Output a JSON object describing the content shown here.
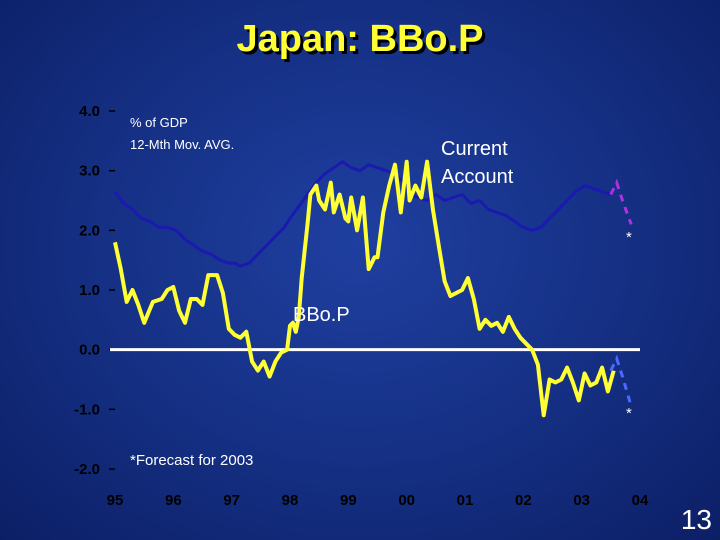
{
  "slide": {
    "title": "Japan:  BBo.P",
    "page_number": "13"
  },
  "chart_data": {
    "type": "line",
    "title": "Japan:  BBo.P",
    "ylim": [
      -2.0,
      4.0
    ],
    "xlim": [
      1995,
      2004
    ],
    "y_ticks": [
      "4.0",
      "3.0",
      "2.0",
      "1.0",
      "0.0",
      "-1.0",
      "-2.0"
    ],
    "y_tick_values": [
      4.0,
      3.0,
      2.0,
      1.0,
      0.0,
      -1.0,
      -2.0
    ],
    "x_ticks": [
      "95",
      "96",
      "97",
      "98",
      "99",
      "00",
      "01",
      "02",
      "03",
      "04"
    ],
    "x_tick_values": [
      1995,
      1996,
      1997,
      1998,
      1999,
      2000,
      2001,
      2002,
      2003,
      2004
    ],
    "annotations": {
      "units_line1": "% of GDP",
      "units_line2": "12-Mth Mov. AVG.",
      "forecast_note": "*Forecast for 2003",
      "asterisk": "*"
    },
    "grid": false,
    "colors": {
      "current_account": "#1a1ab0",
      "bbop": "#ffff33",
      "ca_forecast": "#b030e0",
      "bbop_forecast": "#4a6aff",
      "zero_line": "#ffffff",
      "plot_bg": "#ffffff"
    },
    "series": [
      {
        "name": "Current Account",
        "label_line1": "Current",
        "label_line2": "Account",
        "x": [
          1995.0,
          1995.15,
          1995.3,
          1995.45,
          1995.6,
          1995.75,
          1995.9,
          1996.05,
          1996.2,
          1996.35,
          1996.5,
          1996.65,
          1996.8,
          1996.95,
          1997.05,
          1997.15,
          1997.3,
          1997.45,
          1997.6,
          1997.75,
          1997.9,
          1998.0,
          1998.15,
          1998.3,
          1998.45,
          1998.6,
          1998.75,
          1998.9,
          1999.05,
          1999.2,
          1999.35,
          1999.5,
          1999.65,
          1999.8,
          1999.95,
          2000.05,
          2000.2,
          2000.35,
          2000.5,
          2000.65,
          2000.8,
          2000.95,
          2001.1,
          2001.25,
          2001.4,
          2001.55,
          2001.7,
          2001.85,
          2002.0,
          2002.15,
          2002.3,
          2002.45,
          2002.6,
          2002.75,
          2002.9,
          2003.05,
          2003.2,
          2003.35,
          2003.5
        ],
        "values": [
          2.65,
          2.45,
          2.35,
          2.2,
          2.15,
          2.05,
          2.05,
          2.0,
          1.85,
          1.75,
          1.65,
          1.6,
          1.5,
          1.45,
          1.45,
          1.4,
          1.45,
          1.6,
          1.75,
          1.9,
          2.05,
          2.2,
          2.4,
          2.6,
          2.8,
          2.95,
          3.05,
          3.15,
          3.05,
          3.0,
          3.1,
          3.05,
          3.0,
          2.95,
          2.8,
          2.6,
          2.55,
          2.5,
          2.6,
          2.5,
          2.55,
          2.6,
          2.45,
          2.5,
          2.35,
          2.3,
          2.25,
          2.15,
          2.05,
          2.0,
          2.05,
          2.2,
          2.35,
          2.5,
          2.65,
          2.75,
          2.7,
          2.65,
          2.6
        ]
      },
      {
        "name": "BBo.P",
        "label": "BBo.P",
        "x": [
          1995.0,
          1995.1,
          1995.2,
          1995.3,
          1995.4,
          1995.5,
          1995.65,
          1995.8,
          1995.9,
          1996.0,
          1996.1,
          1996.2,
          1996.3,
          1996.4,
          1996.5,
          1996.6,
          1996.75,
          1996.85,
          1996.95,
          1997.05,
          1997.15,
          1997.25,
          1997.35,
          1997.45,
          1997.55,
          1997.65,
          1997.75,
          1997.85,
          1997.95,
          1998.0,
          1998.05,
          1998.1,
          1998.15,
          1998.2,
          1998.3,
          1998.35,
          1998.45,
          1998.5,
          1998.6,
          1998.7,
          1998.75,
          1998.85,
          1998.95,
          1999.0,
          1999.05,
          1999.15,
          1999.25,
          1999.35,
          1999.45,
          1999.5,
          1999.6,
          1999.7,
          1999.8,
          1999.9,
          2000.0,
          2000.05,
          2000.15,
          2000.25,
          2000.35,
          2000.45,
          2000.55,
          2000.65,
          2000.75,
          2000.85,
          2000.95,
          2001.05,
          2001.15,
          2001.25,
          2001.35,
          2001.45,
          2001.55,
          2001.65,
          2001.75,
          2001.85,
          2001.95,
          2002.05,
          2002.15,
          2002.25,
          2002.35,
          2002.45,
          2002.55,
          2002.65,
          2002.75,
          2002.85,
          2002.95,
          2003.05,
          2003.15,
          2003.25,
          2003.35,
          2003.45,
          2003.55
        ],
        "values": [
          1.8,
          1.35,
          0.8,
          1.0,
          0.75,
          0.45,
          0.8,
          0.85,
          1.0,
          1.05,
          0.65,
          0.45,
          0.85,
          0.85,
          0.75,
          1.25,
          1.25,
          0.95,
          0.35,
          0.25,
          0.2,
          0.3,
          -0.2,
          -0.35,
          -0.2,
          -0.45,
          -0.2,
          -0.05,
          0.0,
          0.4,
          0.45,
          0.3,
          0.55,
          1.2,
          2.1,
          2.6,
          2.75,
          2.5,
          2.35,
          2.8,
          2.3,
          2.6,
          2.2,
          2.15,
          2.55,
          2.0,
          2.55,
          1.35,
          1.55,
          1.55,
          2.3,
          2.75,
          3.1,
          2.3,
          3.15,
          2.5,
          2.75,
          2.55,
          3.15,
          2.35,
          1.75,
          1.15,
          0.9,
          0.95,
          1.0,
          1.2,
          0.85,
          0.35,
          0.5,
          0.4,
          0.45,
          0.3,
          0.55,
          0.35,
          0.2,
          0.1,
          0.0,
          -0.25,
          -1.1,
          -0.5,
          -0.55,
          -0.5,
          -0.3,
          -0.55,
          -0.85,
          -0.4,
          -0.6,
          -0.55,
          -0.3,
          -0.7,
          -0.35
        ]
      },
      {
        "name": "Current Account forecast",
        "x": [
          2003.5,
          2003.6,
          2003.7,
          2003.85
        ],
        "values": [
          2.6,
          2.8,
          2.5,
          2.1
        ]
      },
      {
        "name": "BBo.P forecast",
        "x": [
          2003.5,
          2003.6,
          2003.7,
          2003.85
        ],
        "values": [
          -0.35,
          -0.15,
          -0.45,
          -0.95
        ]
      }
    ]
  }
}
